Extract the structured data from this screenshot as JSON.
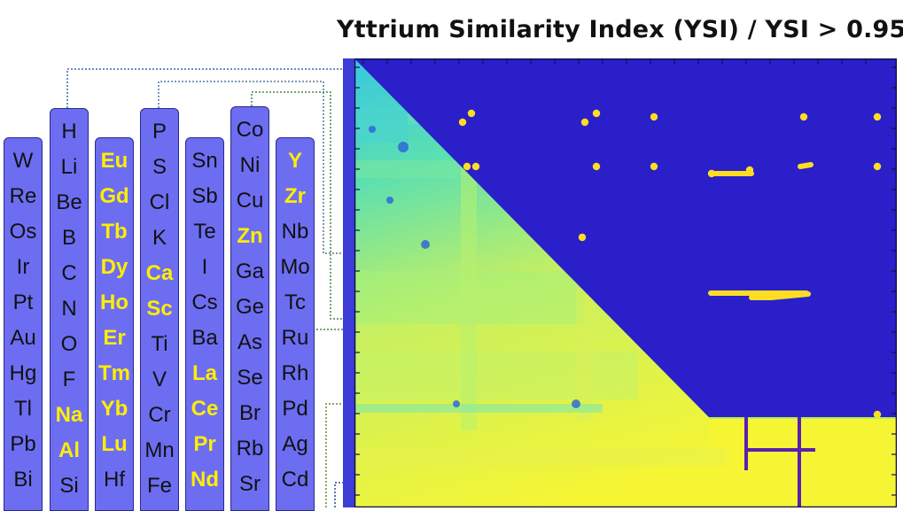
{
  "title": "Yttrium Similarity Index (YSI) / YSI > 0.95",
  "colors": {
    "column_fill": "#6d6df2",
    "highlight_text": "#ffee00",
    "heatmap_background": "#2a1fc8",
    "heatmap_low": "#3cc8d8",
    "heatmap_high": "#f5f534",
    "threshold_marks": "#ffdd22"
  },
  "element_columns": [
    {
      "elements": [
        {
          "symbol": "W"
        },
        {
          "symbol": "Re"
        },
        {
          "symbol": "Os"
        },
        {
          "symbol": "Ir"
        },
        {
          "symbol": "Pt"
        },
        {
          "symbol": "Au"
        },
        {
          "symbol": "Hg"
        },
        {
          "symbol": "Tl"
        },
        {
          "symbol": "Pb"
        },
        {
          "symbol": "Bi"
        }
      ]
    },
    {
      "elements": [
        {
          "symbol": "H"
        },
        {
          "symbol": "Li"
        },
        {
          "symbol": "Be"
        },
        {
          "symbol": "B"
        },
        {
          "symbol": "C"
        },
        {
          "symbol": "N"
        },
        {
          "symbol": "O"
        },
        {
          "symbol": "F"
        },
        {
          "symbol": "Na",
          "highlight": true
        },
        {
          "symbol": "Al",
          "highlight": true
        },
        {
          "symbol": "Si"
        }
      ]
    },
    {
      "elements": [
        {
          "symbol": "Eu",
          "highlight": true
        },
        {
          "symbol": "Gd",
          "highlight": true
        },
        {
          "symbol": "Tb",
          "highlight": true
        },
        {
          "symbol": "Dy",
          "highlight": true
        },
        {
          "symbol": "Ho",
          "highlight": true
        },
        {
          "symbol": "Er",
          "highlight": true
        },
        {
          "symbol": "Tm",
          "highlight": true
        },
        {
          "symbol": "Yb",
          "highlight": true
        },
        {
          "symbol": "Lu",
          "highlight": true
        },
        {
          "symbol": "Hf"
        }
      ]
    },
    {
      "elements": [
        {
          "symbol": "P"
        },
        {
          "symbol": "S"
        },
        {
          "symbol": "Cl"
        },
        {
          "symbol": "K"
        },
        {
          "symbol": "Ca",
          "highlight": true
        },
        {
          "symbol": "Sc",
          "highlight": true
        },
        {
          "symbol": "Ti"
        },
        {
          "symbol": "V"
        },
        {
          "symbol": "Cr"
        },
        {
          "symbol": "Mn"
        },
        {
          "symbol": "Fe"
        }
      ]
    },
    {
      "elements": [
        {
          "symbol": "Sn"
        },
        {
          "symbol": "Sb"
        },
        {
          "symbol": "Te"
        },
        {
          "symbol": "I"
        },
        {
          "symbol": "Cs"
        },
        {
          "symbol": "Ba"
        },
        {
          "symbol": "La",
          "highlight": true
        },
        {
          "symbol": "Ce",
          "highlight": true
        },
        {
          "symbol": "Pr",
          "highlight": true
        },
        {
          "symbol": "Nd",
          "highlight": true
        }
      ]
    },
    {
      "elements": [
        {
          "symbol": "Co"
        },
        {
          "symbol": "Ni"
        },
        {
          "symbol": "Cu"
        },
        {
          "symbol": "Zn",
          "highlight": true
        },
        {
          "symbol": "Ga"
        },
        {
          "symbol": "Ge"
        },
        {
          "symbol": "As"
        },
        {
          "symbol": "Se"
        },
        {
          "symbol": "Br"
        },
        {
          "symbol": "Rb"
        },
        {
          "symbol": "Sr"
        }
      ]
    },
    {
      "elements": [
        {
          "symbol": "Y",
          "highlight": true
        },
        {
          "symbol": "Zr",
          "highlight": true
        },
        {
          "symbol": "Nb"
        },
        {
          "symbol": "Mo"
        },
        {
          "symbol": "Tc"
        },
        {
          "symbol": "Ru"
        },
        {
          "symbol": "Rh"
        },
        {
          "symbol": "Pd"
        },
        {
          "symbol": "Ag"
        },
        {
          "symbol": "Cd"
        }
      ]
    }
  ],
  "chart_data": {
    "type": "heatmap",
    "title": "Yttrium Similarity Index (YSI) / YSI > 0.95",
    "lower_triangle": "YSI",
    "upper_triangle": "YSI > 0.95",
    "color_scale": [
      "#2a1fc8",
      "#3cc8d8",
      "#a8f080",
      "#f5f534"
    ],
    "threshold": 0.95
  }
}
